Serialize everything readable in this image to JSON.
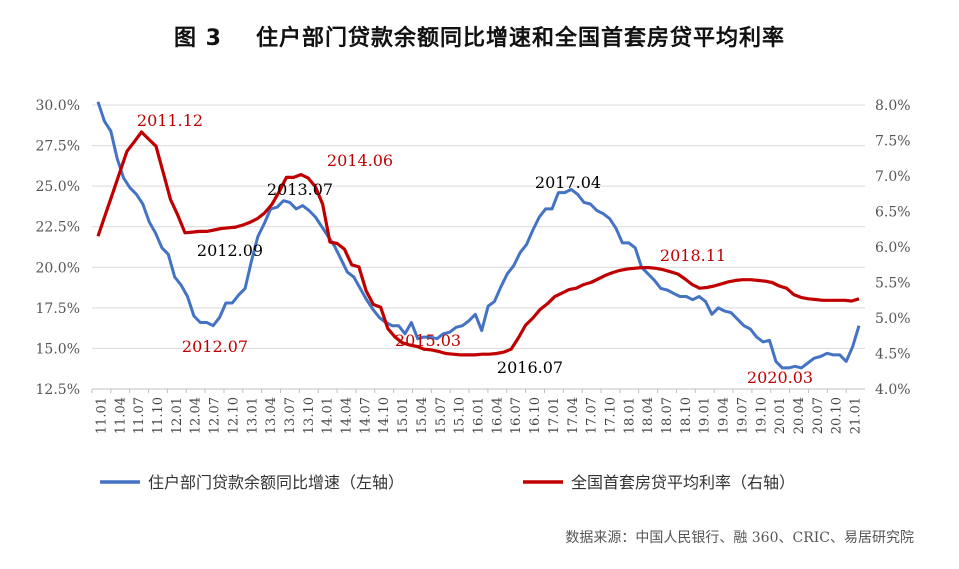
{
  "title": {
    "figure_label": "图 3",
    "text": "住户部门贷款余额同比增速和全国首套房贷平均利率"
  },
  "source": "数据来源：中国人民银行、融 360、CRIC、易居研究院",
  "colors": {
    "left_series": "#4472C4",
    "right_series": "#C00000",
    "grid": "#d9d9d9",
    "axis": "#bfbfbf"
  },
  "chart_data": {
    "type": "line",
    "left_axis": {
      "ticks": [
        "30.0%",
        "27.5%",
        "25.0%",
        "22.5%",
        "20.0%",
        "17.5%",
        "15.0%",
        "12.5%"
      ],
      "ylim": [
        12.5,
        30.0
      ]
    },
    "right_axis": {
      "ticks": [
        "8.0%",
        "7.5%",
        "7.0%",
        "6.5%",
        "6.0%",
        "5.5%",
        "5.0%",
        "4.5%",
        "4.0%"
      ],
      "ylim": [
        4.0,
        8.0
      ]
    },
    "x_ticks": [
      "11.01",
      "11.04",
      "11.07",
      "11.10",
      "12.01",
      "12.04",
      "12.07",
      "12.10",
      "13.01",
      "13.04",
      "13.07",
      "13.10",
      "14.01",
      "14.04",
      "14.07",
      "14.10",
      "15.01",
      "15.04",
      "15.07",
      "15.10",
      "16.01",
      "16.04",
      "16.07",
      "16.10",
      "17.01",
      "17.04",
      "17.07",
      "17.10",
      "18.01",
      "18.04",
      "18.07",
      "18.10",
      "19.01",
      "19.04",
      "19.07",
      "19.10",
      "20.01",
      "20.04",
      "20.07",
      "20.10",
      "21.01"
    ],
    "series": [
      {
        "name": "住户部门贷款余额同比增速（左轴）",
        "axis": "left",
        "color": "#4472C4",
        "values": [
          30.2,
          29.0,
          28.4,
          26.7,
          25.5,
          24.9,
          24.5,
          23.9,
          22.8,
          22.1,
          21.2,
          20.8,
          19.4,
          18.9,
          18.2,
          17.0,
          16.6,
          16.6,
          16.4,
          16.9,
          17.8,
          17.8,
          18.3,
          18.7,
          20.4,
          21.9,
          22.7,
          23.6,
          23.7,
          24.1,
          24.0,
          23.6,
          23.8,
          23.5,
          23.1,
          22.5,
          21.9,
          21.3,
          20.5,
          19.7,
          19.4,
          18.7,
          18.0,
          17.4,
          16.9,
          16.6,
          16.4,
          16.4,
          15.9,
          16.6,
          15.6,
          15.7,
          15.7,
          15.6,
          15.9,
          16.0,
          16.3,
          16.4,
          16.7,
          17.1,
          16.1,
          17.6,
          17.9,
          18.8,
          19.6,
          20.1,
          20.9,
          21.4,
          22.3,
          23.1,
          23.6,
          23.6,
          24.6,
          24.6,
          24.8,
          24.5,
          24.0,
          23.9,
          23.5,
          23.3,
          23.0,
          22.4,
          21.5,
          21.5,
          21.2,
          20.0,
          19.6,
          19.2,
          18.7,
          18.6,
          18.4,
          18.2,
          18.2,
          18.0,
          18.2,
          17.9,
          17.1,
          17.5,
          17.3,
          17.2,
          16.8,
          16.4,
          16.2,
          15.7,
          15.4,
          15.5,
          14.2,
          13.8,
          13.8,
          13.9,
          13.8,
          14.1,
          14.4,
          14.5,
          14.7,
          14.6,
          14.6,
          14.2,
          15.1,
          16.4
        ]
      },
      {
        "name": "全国首套房贷平均利率（右轴）",
        "axis": "right",
        "color": "#C00000",
        "values": [
          6.15,
          6.45,
          6.75,
          7.05,
          7.35,
          7.48,
          7.62,
          7.52,
          7.42,
          7.05,
          6.67,
          6.45,
          6.2,
          6.21,
          6.22,
          6.22,
          6.24,
          6.26,
          6.27,
          6.28,
          6.31,
          6.35,
          6.4,
          6.48,
          6.6,
          6.78,
          6.98,
          6.98,
          7.02,
          6.97,
          6.85,
          6.6,
          6.07,
          6.05,
          5.97,
          5.75,
          5.72,
          5.38,
          5.19,
          5.15,
          4.85,
          4.73,
          4.65,
          4.62,
          4.6,
          4.56,
          4.55,
          4.53,
          4.5,
          4.49,
          4.48,
          4.48,
          4.48,
          4.49,
          4.49,
          4.5,
          4.52,
          4.56,
          4.72,
          4.9,
          5.0,
          5.12,
          5.2,
          5.3,
          5.35,
          5.4,
          5.42,
          5.47,
          5.5,
          5.55,
          5.6,
          5.64,
          5.67,
          5.69,
          5.7,
          5.71,
          5.71,
          5.7,
          5.68,
          5.65,
          5.62,
          5.55,
          5.47,
          5.42,
          5.43,
          5.45,
          5.48,
          5.51,
          5.53,
          5.54,
          5.54,
          5.53,
          5.52,
          5.5,
          5.45,
          5.42,
          5.33,
          5.29,
          5.27,
          5.26,
          5.25,
          5.25,
          5.25,
          5.25,
          5.24,
          5.27
        ]
      }
    ],
    "annotations": [
      {
        "text": "2011.12",
        "color": "#C00000"
      },
      {
        "text": "2012.09",
        "color": "#000000"
      },
      {
        "text": "2012.07",
        "color": "#C00000"
      },
      {
        "text": "2013.07",
        "color": "#000000"
      },
      {
        "text": "2014.06",
        "color": "#C00000"
      },
      {
        "text": "2015.03",
        "color": "#C00000"
      },
      {
        "text": "2016.07",
        "color": "#000000"
      },
      {
        "text": "2017.04",
        "color": "#000000"
      },
      {
        "text": "2018.11",
        "color": "#C00000"
      },
      {
        "text": "2020.03",
        "color": "#C00000"
      }
    ],
    "legend": {
      "position": "bottom"
    }
  }
}
